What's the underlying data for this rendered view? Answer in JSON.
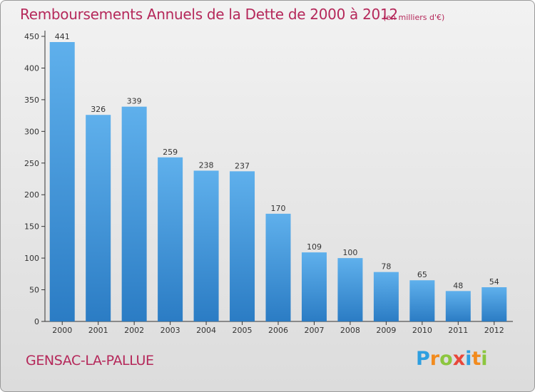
{
  "chart_data": {
    "type": "bar",
    "title": "Remboursements Annuels de la Dette de 2000 à 2012",
    "subtitle": "(en milliers d'€)",
    "categories": [
      "2000",
      "2001",
      "2002",
      "2003",
      "2004",
      "2005",
      "2006",
      "2007",
      "2008",
      "2009",
      "2010",
      "2011",
      "2012"
    ],
    "values": [
      441,
      326,
      339,
      259,
      238,
      237,
      170,
      109,
      100,
      78,
      65,
      48,
      54
    ],
    "ylim": [
      0,
      450
    ],
    "yticks": [
      0,
      50,
      100,
      150,
      200,
      250,
      300,
      350,
      400,
      450
    ],
    "xlabel": "",
    "ylabel": "",
    "grid": false,
    "colors": {
      "bar_top": "#5fb0ec",
      "bar_bottom": "#2b7cc4"
    }
  },
  "commune": "GENSAC-LA-PALLUE",
  "brand": {
    "letters": [
      "P",
      "r",
      "o",
      "x",
      "i",
      "t",
      "i"
    ],
    "colors": [
      "#2e9fe0",
      "#f28b1e",
      "#8cc63f",
      "#e8473a",
      "#2e9fe0",
      "#f28b1e",
      "#8cc63f"
    ]
  }
}
